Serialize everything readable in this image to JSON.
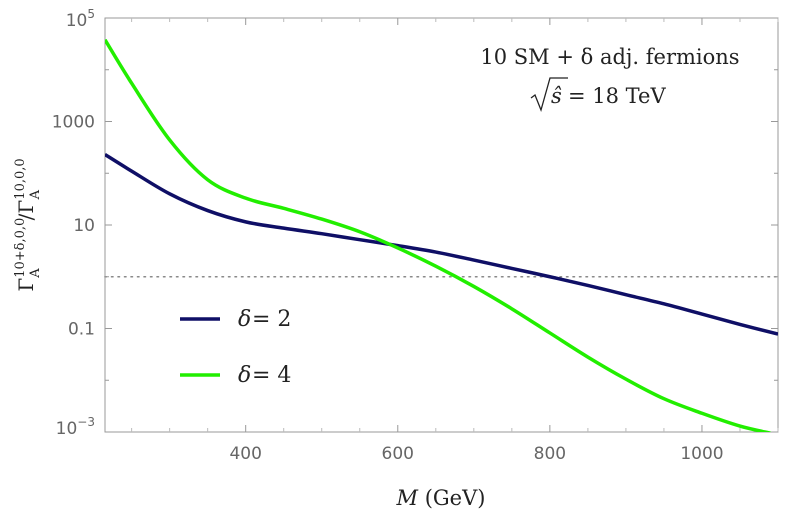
{
  "chart_data": {
    "type": "line",
    "title": "",
    "xlabel": "M (GeV)",
    "xlabel_var": "M",
    "xlabel_unit": " (GeV)",
    "ylabel": "Γ_A^{10+δ,0,0} / Γ_A^{10,0,0}",
    "x_scale": "linear",
    "y_scale": "log",
    "xlim": [
      215,
      1100
    ],
    "ylim": [
      0.001,
      100000
    ],
    "x_ticks": [
      {
        "value": 400,
        "label": "400"
      },
      {
        "value": 600,
        "label": "600"
      },
      {
        "value": 800,
        "label": "800"
      },
      {
        "value": 1000,
        "label": "1000"
      }
    ],
    "y_ticks": [
      {
        "value": 0.001,
        "base": "10",
        "exp": "−3"
      },
      {
        "value": 0.1,
        "label": "0.1"
      },
      {
        "value": 10,
        "label": "10"
      },
      {
        "value": 1000,
        "label": "1000"
      },
      {
        "value": 100000,
        "base": "10",
        "exp": "5"
      }
    ],
    "reference_line": {
      "y": 1,
      "style": "dotted"
    },
    "annotation": {
      "line1": "10 SM + δ adj. fermions",
      "line2_lhs": "ŝ",
      "line2_rhs": " = 18 TeV"
    },
    "series": [
      {
        "name": "δ = 2",
        "symbol": "δ",
        "eq": " = 2",
        "color": "#0f0f66",
        "x": [
          215,
          250,
          300,
          350,
          400,
          450,
          500,
          550,
          600,
          650,
          700,
          750,
          800,
          850,
          900,
          950,
          1000,
          1050,
          1100
        ],
        "y": [
          230,
          110,
          40,
          19,
          11.5,
          8.7,
          6.8,
          5.2,
          4.0,
          3.0,
          2.1,
          1.45,
          1.0,
          0.68,
          0.45,
          0.3,
          0.19,
          0.12,
          0.078
        ]
      },
      {
        "name": "δ = 4",
        "symbol": "δ",
        "eq": " = 4",
        "color": "#22ee00",
        "x": [
          215,
          250,
          300,
          350,
          400,
          450,
          500,
          550,
          600,
          650,
          700,
          750,
          800,
          850,
          900,
          950,
          1000,
          1050,
          1090
        ],
        "y": [
          38000,
          5500,
          440,
          75,
          33,
          21,
          13,
          7.4,
          3.6,
          1.6,
          0.65,
          0.24,
          0.082,
          0.028,
          0.0105,
          0.0044,
          0.0023,
          0.0013,
          0.00095
        ]
      }
    ]
  }
}
